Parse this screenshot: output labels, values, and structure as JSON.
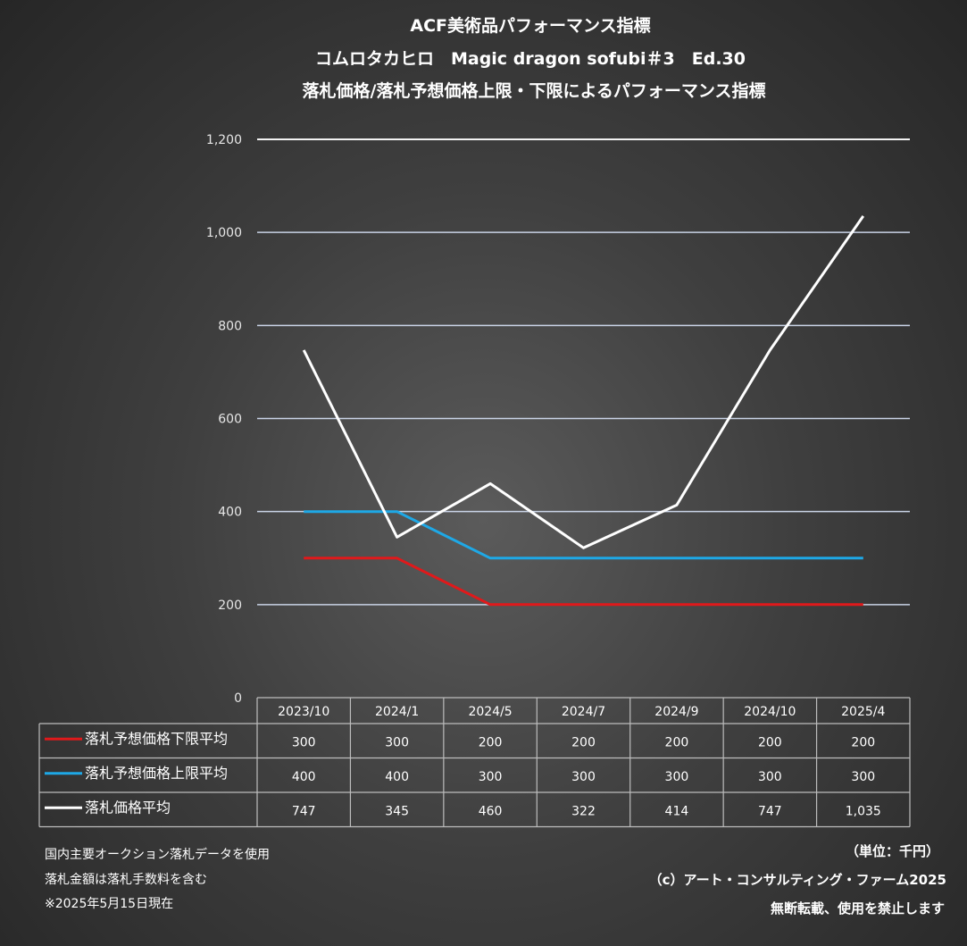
{
  "titles": [
    "ACF美術品パフォーマンス指標",
    "コムロタカヒロ　Magic dragon sofubi＃3　Ed.30",
    "落札価格/落札予想価格上限・下限によるパフォーマンス指標"
  ],
  "chart_data": {
    "type": "line",
    "categories": [
      "2023/10",
      "2024/1",
      "2024/5",
      "2024/7",
      "2024/9",
      "2024/10",
      "2025/4"
    ],
    "series": [
      {
        "name": "落札予想価格下限平均",
        "color": "#e0191b",
        "values": [
          300,
          300,
          200,
          200,
          200,
          200,
          200
        ],
        "labels": [
          "300",
          "300",
          "200",
          "200",
          "200",
          "200",
          "200"
        ]
      },
      {
        "name": "落札予想価格上限平均",
        "color": "#1ea8e6",
        "values": [
          400,
          400,
          300,
          300,
          300,
          300,
          300
        ],
        "labels": [
          "400",
          "400",
          "300",
          "300",
          "300",
          "300",
          "300"
        ]
      },
      {
        "name": "落札価格平均",
        "color": "#ffffff",
        "values": [
          747,
          345,
          460,
          322,
          414,
          747,
          1035
        ],
        "labels": [
          "747",
          "345",
          "460",
          "322",
          "414",
          "747",
          "1,035"
        ]
      }
    ],
    "yticks": [
      0,
      200,
      400,
      600,
      800,
      1000,
      1200
    ],
    "ytick_labels": [
      "0",
      "200",
      "400",
      "600",
      "800",
      "1,000",
      "1,200"
    ],
    "ylim": [
      0,
      1200
    ],
    "grid": true,
    "legend": "data-table"
  },
  "notes_left": [
    "国内主要オークション落札データを使用",
    "落札金額は落札手数料を含む",
    "※2025年5月15日現在"
  ],
  "notes_right": [
    "（単位：千円）",
    "（c）アート・コンサルティング・ファーム2025",
    "無断転載、使用を禁止します"
  ]
}
